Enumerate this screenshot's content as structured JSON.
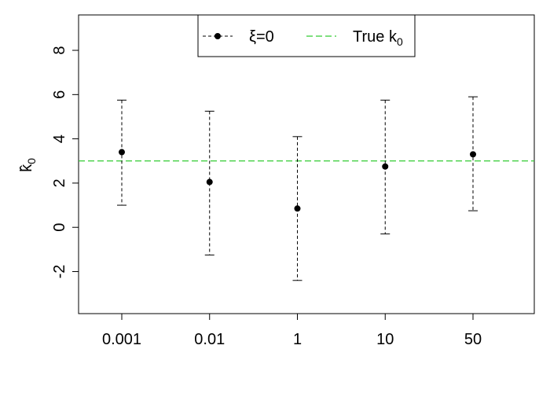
{
  "chart_data": {
    "type": "scatter",
    "title": "",
    "xlabel": "",
    "ylabel": "k̂",
    "ylabel_sub": "0",
    "categories": [
      "0.001",
      "0.01",
      "1",
      "10",
      "50"
    ],
    "ylim": [
      -3.9,
      9.6
    ],
    "yticks": [
      "-2",
      "0",
      "2",
      "4",
      "6",
      "8"
    ],
    "series": [
      {
        "name": "ξ=0",
        "values": [
          3.4,
          2.05,
          0.85,
          2.75,
          3.3
        ],
        "lower": [
          1.0,
          -1.25,
          -2.4,
          -0.3,
          0.75
        ],
        "upper": [
          5.75,
          5.25,
          4.1,
          5.75,
          5.9
        ]
      }
    ],
    "reference_line": {
      "name": "True k",
      "name_sub": "0",
      "value": 3.0,
      "color": "#33cc33"
    },
    "grid": false,
    "legend_position": "top"
  }
}
